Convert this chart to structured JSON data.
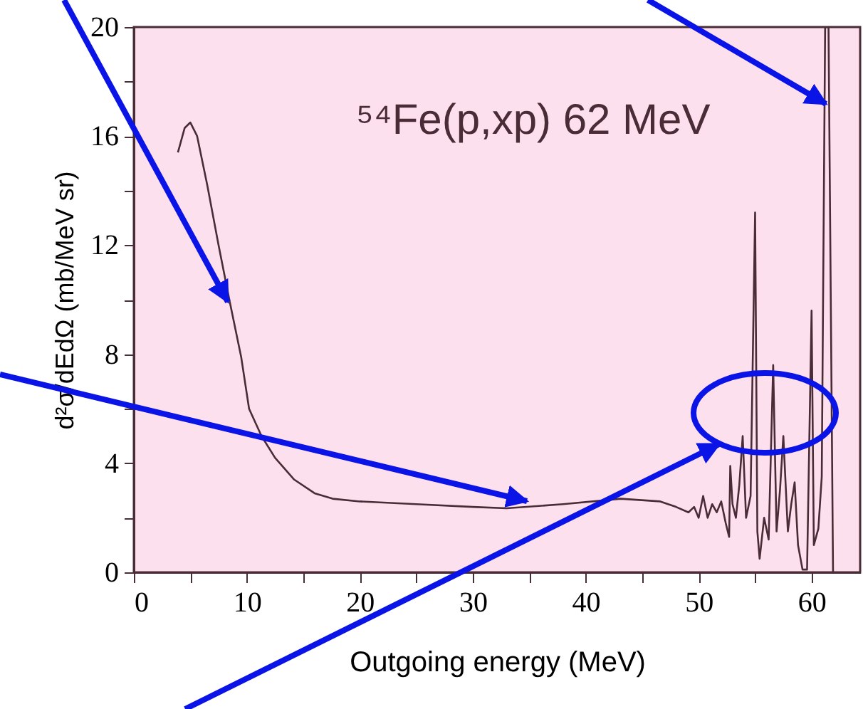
{
  "chart_data": {
    "type": "line",
    "xlabel": "Outgoing energy (MeV)",
    "ylabel": "d²σ/dEdΩ (mb/MeV sr)",
    "annotations": [
      "⁵⁴Fe(p,xp) 62 MeV"
    ],
    "xlim": [
      0,
      64.3
    ],
    "ylim": [
      0,
      20
    ],
    "xticks": [
      0,
      {
        "value": 5,
        "label": null
      },
      10,
      {
        "value": 15,
        "label": null
      },
      20,
      {
        "value": 25,
        "label": null
      },
      30,
      {
        "value": 35,
        "label": null
      },
      40,
      {
        "value": 45,
        "label": null
      },
      50,
      {
        "value": 55,
        "label": null
      },
      60
    ],
    "yticks": [
      0,
      {
        "value": 2,
        "label": null
      },
      4,
      {
        "value": 6,
        "label": null
      },
      8,
      {
        "value": 10,
        "label": null
      },
      12,
      {
        "value": 14,
        "label": null
      },
      16,
      {
        "value": 18,
        "label": null
      },
      20
    ],
    "grid": false,
    "marker": "none",
    "line_style": "solid",
    "series": [
      {
        "color": "#4a2c36",
        "x": [
          3.9,
          4.5,
          5.0,
          5.6,
          6.5,
          7.5,
          8.5,
          9.5,
          10.2,
          11.3,
          12.5,
          14.2,
          16,
          17.6,
          20,
          25,
          30,
          33,
          38,
          43.1,
          46.6,
          48,
          49.1,
          49.6,
          50.0,
          50.4,
          50.8,
          51.2,
          51.6,
          52.0,
          52.4,
          52.7,
          52.8,
          53.0,
          53.3,
          53.6,
          53.9,
          54.2,
          54.6,
          55.0,
          55.2,
          55.4,
          55.8,
          56.2,
          56.6,
          56.9,
          57.2,
          57.5,
          57.9,
          58.2,
          58.5,
          58.8,
          59.2,
          59.6,
          60.0,
          60.2,
          60.6,
          60.9,
          61.2,
          61.5,
          61.9
        ],
        "values": [
          15.4,
          16.3,
          16.5,
          16.0,
          14.2,
          12.0,
          9.9,
          7.9,
          6.0,
          5.0,
          4.2,
          3.4,
          2.9,
          2.7,
          2.6,
          2.5,
          2.4,
          2.35,
          2.5,
          2.7,
          2.6,
          2.4,
          2.2,
          2.4,
          2.0,
          2.8,
          2.0,
          2.5,
          2.2,
          2.6,
          1.8,
          1.3,
          3.9,
          2.5,
          2.0,
          3.2,
          5.0,
          2.0,
          2.8,
          13.2,
          1.5,
          0.5,
          2.0,
          1.2,
          7.6,
          1.5,
          3.0,
          5.0,
          1.5,
          2.5,
          3.3,
          1.0,
          0.1,
          0.1,
          9.6,
          1.0,
          1.6,
          3.5,
          20,
          20,
          0
        ]
      }
    ]
  }
}
